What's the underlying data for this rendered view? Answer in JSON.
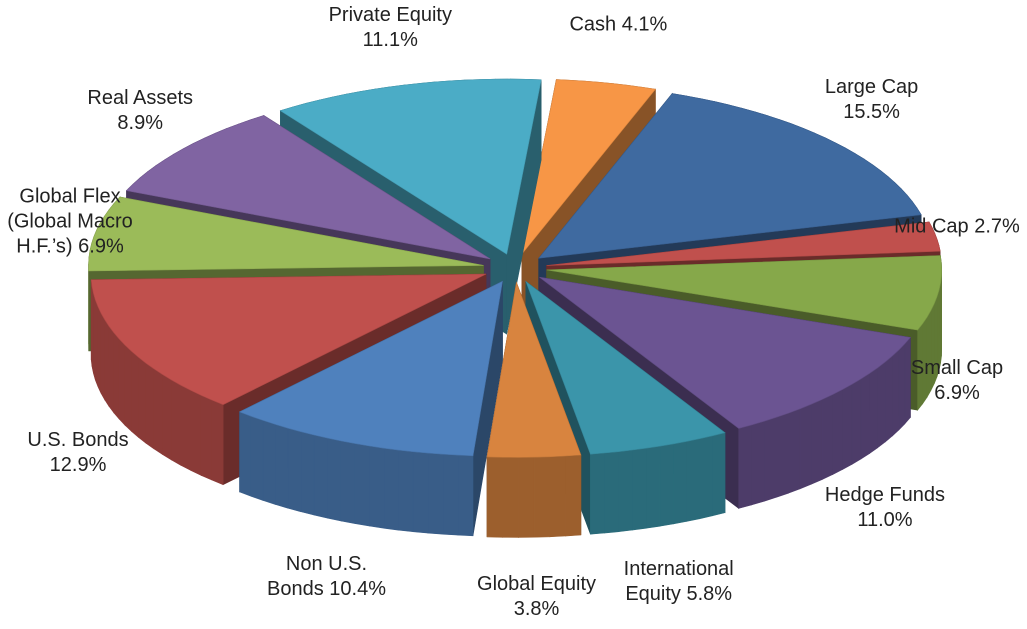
{
  "chart_data": {
    "type": "pie3d",
    "categories": [
      "Cash",
      "Large Cap",
      "Mid Cap",
      "Small Cap",
      "Hedge Funds",
      "International Equity",
      "Global Equity",
      "Non U.S. Bonds",
      "U.S. Bonds",
      "Global Flex (Global Macro H.F.’s)",
      "Real Assets",
      "Private Equity"
    ],
    "values": [
      4.1,
      15.5,
      2.7,
      6.9,
      11.0,
      5.8,
      3.8,
      10.4,
      12.9,
      6.9,
      8.9,
      11.1
    ],
    "value_labels": [
      "4.1%",
      "15.5%",
      "2.7%",
      "6.9%",
      "11.0%",
      "5.8%",
      "3.8%",
      "10.4%",
      "12.9%",
      "6.9%",
      "8.9%",
      "11.1%"
    ],
    "colors": [
      "#f79646",
      "#3f6aa0",
      "#c0504d",
      "#86a84a",
      "#6b5492",
      "#3b95aa",
      "#d8843f",
      "#4f81bd",
      "#c0504d",
      "#9bbb59",
      "#8064a2",
      "#4bacc6"
    ]
  }
}
